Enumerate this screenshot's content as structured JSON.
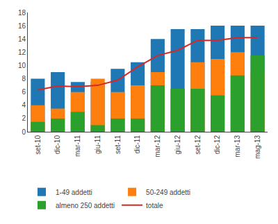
{
  "chart_data": {
    "type": "bar",
    "categories": [
      "set-10",
      "dic-10",
      "mar-11",
      "giu-11",
      "set-11",
      "dic-11",
      "mar-12",
      "giu-12",
      "set-12",
      "dic-12",
      "mar-13",
      "mag-13"
    ],
    "series": [
      {
        "name": "1-49 addetti",
        "type": "bar",
        "values": [
          8.0,
          9.0,
          7.5,
          7.5,
          9.5,
          10.5,
          14.0,
          15.5,
          15.5,
          16.0,
          16.0,
          16.0
        ]
      },
      {
        "name": "50-249 addetti",
        "type": "bar",
        "values": [
          4.0,
          3.5,
          6.0,
          8.0,
          6.0,
          7.0,
          9.0,
          6.5,
          10.5,
          11.0,
          12.0,
          9.0
        ]
      },
      {
        "name": "almeno 250 addetti",
        "type": "bar",
        "values": [
          1.5,
          2.0,
          3.0,
          1.0,
          2.0,
          2.0,
          7.0,
          6.5,
          6.5,
          5.5,
          8.5,
          11.5
        ]
      },
      {
        "name": "totale",
        "type": "line",
        "values": [
          6.3,
          6.9,
          6.8,
          7.0,
          7.8,
          9.8,
          11.5,
          12.3,
          13.8,
          13.8,
          14.2,
          14.2
        ]
      }
    ],
    "ylim": [
      0,
      18
    ],
    "yticks": [
      0,
      2,
      4,
      6,
      8,
      10,
      12,
      14,
      16,
      18
    ],
    "stacked": false,
    "grid": false,
    "legend": "bottom"
  }
}
